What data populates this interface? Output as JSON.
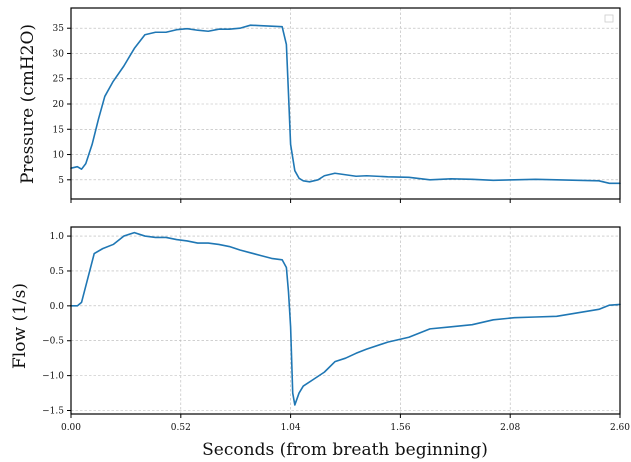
{
  "chart_data": [
    {
      "type": "line",
      "xlabel": "",
      "ylabel": "Pressure (cmH2O)",
      "xlim": [
        0,
        2.6
      ],
      "ylim": [
        1.2,
        39
      ],
      "xticks": [
        0,
        0.52,
        1.04,
        1.56,
        2.08,
        2.6
      ],
      "yticks": [
        5,
        10,
        15,
        20,
        25,
        30,
        35
      ],
      "ytick_labels": [
        "5",
        "10",
        "15",
        "20",
        "25",
        "30",
        "35"
      ],
      "grid": true,
      "legend": "top-right (empty)",
      "series": [
        {
          "color": "#1f77b4",
          "x": [
            0,
            0.03,
            0.05,
            0.07,
            0.1,
            0.13,
            0.16,
            0.2,
            0.25,
            0.3,
            0.35,
            0.4,
            0.45,
            0.5,
            0.55,
            0.6,
            0.65,
            0.7,
            0.75,
            0.8,
            0.85,
            0.9,
            0.95,
            1.0,
            1.02,
            1.03,
            1.04,
            1.06,
            1.08,
            1.1,
            1.13,
            1.17,
            1.2,
            1.25,
            1.3,
            1.35,
            1.4,
            1.5,
            1.6,
            1.7,
            1.8,
            1.9,
            2.0,
            2.1,
            2.2,
            2.3,
            2.4,
            2.5,
            2.55,
            2.6
          ],
          "y": [
            7.3,
            7.6,
            7.1,
            8.2,
            12.0,
            17.0,
            21.5,
            24.5,
            27.5,
            31.0,
            33.7,
            34.2,
            34.2,
            34.7,
            34.9,
            34.6,
            34.4,
            34.8,
            34.8,
            35.0,
            35.6,
            35.5,
            35.4,
            35.3,
            31.8,
            22.0,
            12.0,
            6.8,
            5.3,
            4.8,
            4.6,
            5.0,
            5.8,
            6.3,
            6.0,
            5.7,
            5.8,
            5.6,
            5.5,
            5.0,
            5.2,
            5.1,
            4.9,
            5.0,
            5.1,
            5.0,
            4.9,
            4.8,
            4.3,
            4.3
          ]
        }
      ]
    },
    {
      "type": "line",
      "xlabel": "Seconds (from breath beginning)",
      "ylabel": "Flow (1/s)",
      "xlim": [
        0,
        2.6
      ],
      "ylim": [
        -1.55,
        1.13
      ],
      "xticks": [
        0,
        0.52,
        1.04,
        1.56,
        2.08,
        2.6
      ],
      "xtick_labels": [
        "0.00",
        "0.52",
        "1.04",
        "1.56",
        "2.08",
        "2.60"
      ],
      "yticks": [
        -1.5,
        -1.0,
        -0.5,
        0.0,
        0.5,
        1.0
      ],
      "ytick_labels": [
        "−1.5",
        "−1.0",
        "−0.5",
        "0.0",
        "0.5",
        "1.0"
      ],
      "grid": true,
      "series": [
        {
          "color": "#1f77b4",
          "x": [
            0,
            0.03,
            0.05,
            0.08,
            0.11,
            0.15,
            0.2,
            0.25,
            0.3,
            0.35,
            0.4,
            0.45,
            0.5,
            0.55,
            0.6,
            0.65,
            0.7,
            0.75,
            0.8,
            0.85,
            0.9,
            0.95,
            1.0,
            1.02,
            1.03,
            1.04,
            1.05,
            1.06,
            1.08,
            1.1,
            1.15,
            1.2,
            1.25,
            1.3,
            1.35,
            1.4,
            1.5,
            1.6,
            1.7,
            1.8,
            1.9,
            2.0,
            2.1,
            2.2,
            2.3,
            2.4,
            2.5,
            2.55,
            2.6
          ],
          "y": [
            0.0,
            0.0,
            0.05,
            0.4,
            0.75,
            0.82,
            0.88,
            1.0,
            1.05,
            1.0,
            0.98,
            0.98,
            0.95,
            0.93,
            0.9,
            0.9,
            0.88,
            0.85,
            0.8,
            0.76,
            0.72,
            0.68,
            0.66,
            0.55,
            0.2,
            -0.3,
            -1.25,
            -1.42,
            -1.25,
            -1.15,
            -1.05,
            -0.95,
            -0.8,
            -0.75,
            -0.68,
            -0.62,
            -0.52,
            -0.45,
            -0.33,
            -0.3,
            -0.27,
            -0.2,
            -0.17,
            -0.16,
            -0.15,
            -0.1,
            -0.05,
            0.01,
            0.02
          ]
        }
      ]
    }
  ]
}
